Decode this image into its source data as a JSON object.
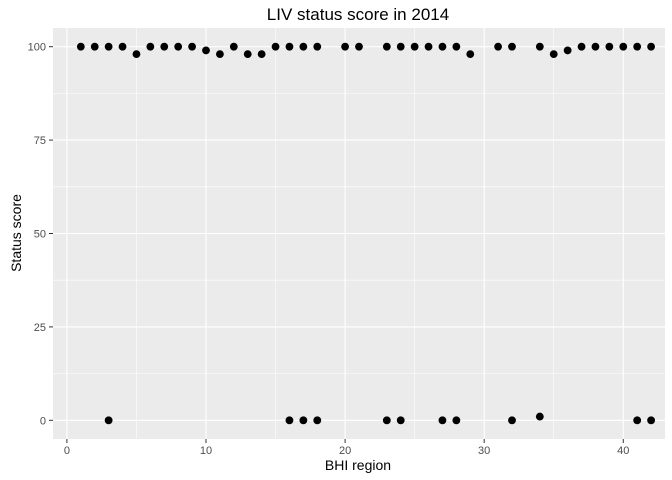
{
  "chart_data": {
    "type": "scatter",
    "title": "LIV status score in 2014",
    "xlabel": "BHI region",
    "ylabel": "Status score",
    "xlim": [
      -1,
      43
    ],
    "ylim": [
      -5,
      105
    ],
    "x_ticks": [
      0,
      10,
      20,
      30,
      40
    ],
    "y_ticks": [
      0,
      25,
      50,
      75,
      100
    ],
    "x_tick_labels": [
      "0",
      "10",
      "20",
      "30",
      "40"
    ],
    "y_tick_labels": [
      "0",
      "25",
      "50",
      "75",
      "100"
    ],
    "grid": true,
    "point_color": "#000000",
    "panel_color": "#ebebeb",
    "points": [
      {
        "x": 1,
        "y": 100
      },
      {
        "x": 2,
        "y": 100
      },
      {
        "x": 3,
        "y": 100
      },
      {
        "x": 3,
        "y": 0
      },
      {
        "x": 4,
        "y": 100
      },
      {
        "x": 5,
        "y": 98
      },
      {
        "x": 6,
        "y": 100
      },
      {
        "x": 7,
        "y": 100
      },
      {
        "x": 8,
        "y": 100
      },
      {
        "x": 9,
        "y": 100
      },
      {
        "x": 10,
        "y": 99
      },
      {
        "x": 11,
        "y": 98
      },
      {
        "x": 12,
        "y": 100
      },
      {
        "x": 13,
        "y": 98
      },
      {
        "x": 14,
        "y": 98
      },
      {
        "x": 15,
        "y": 100
      },
      {
        "x": 16,
        "y": 100
      },
      {
        "x": 16,
        "y": 0
      },
      {
        "x": 17,
        "y": 100
      },
      {
        "x": 17,
        "y": 0
      },
      {
        "x": 18,
        "y": 100
      },
      {
        "x": 18,
        "y": 0
      },
      {
        "x": 20,
        "y": 100
      },
      {
        "x": 21,
        "y": 100
      },
      {
        "x": 23,
        "y": 100
      },
      {
        "x": 23,
        "y": 0
      },
      {
        "x": 24,
        "y": 100
      },
      {
        "x": 24,
        "y": 0
      },
      {
        "x": 25,
        "y": 100
      },
      {
        "x": 26,
        "y": 100
      },
      {
        "x": 27,
        "y": 100
      },
      {
        "x": 27,
        "y": 0
      },
      {
        "x": 28,
        "y": 100
      },
      {
        "x": 28,
        "y": 0
      },
      {
        "x": 29,
        "y": 98
      },
      {
        "x": 31,
        "y": 100
      },
      {
        "x": 32,
        "y": 100
      },
      {
        "x": 32,
        "y": 0
      },
      {
        "x": 34,
        "y": 100
      },
      {
        "x": 34,
        "y": 1
      },
      {
        "x": 35,
        "y": 98
      },
      {
        "x": 36,
        "y": 99
      },
      {
        "x": 37,
        "y": 100
      },
      {
        "x": 38,
        "y": 100
      },
      {
        "x": 39,
        "y": 100
      },
      {
        "x": 40,
        "y": 100
      },
      {
        "x": 41,
        "y": 100
      },
      {
        "x": 41,
        "y": 0
      },
      {
        "x": 42,
        "y": 100
      },
      {
        "x": 42,
        "y": 0
      }
    ]
  }
}
